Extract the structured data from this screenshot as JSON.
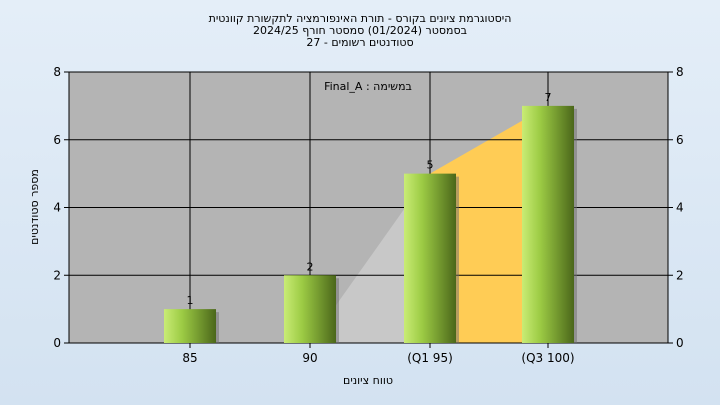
{
  "chart_data": {
    "type": "bar",
    "title": [
      "היסטוגרמת ציונים בקורס - תורת האינפורמציה לתקשורת קוונטית",
      "בסמסטר  (01/2024)  סמסטר חורף 2024/25",
      "סטודנטים רשומים - 27"
    ],
    "subtitle": "במשימה : Final_A",
    "xlabel": "טווח ציונים",
    "ylabel": "מספר סטודנטים",
    "categories": [
      "85",
      "90",
      "(Q1 95)",
      "(Q3 100)"
    ],
    "values": [
      1,
      2,
      5,
      7
    ],
    "data_labels": [
      "1",
      "2",
      "5",
      "7"
    ],
    "ylim": [
      0,
      8
    ],
    "yticks": [
      0,
      2,
      4,
      6,
      8
    ],
    "grid": true,
    "colors": {
      "plot_bg": "#b4b4b4",
      "bar_light": "#b5df5f",
      "bar_dark": "#4f6b1c",
      "iqr_band": "#ffcc55",
      "lower_band": "#c8c8c8"
    }
  }
}
